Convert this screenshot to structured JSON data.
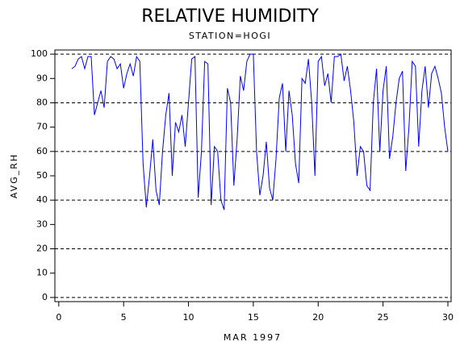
{
  "chart_data": {
    "type": "line",
    "title": "RELATIVE HUMIDITY",
    "subtitle": "STATION=HOGI",
    "x_label": "MAR 1997",
    "y_label": "AVG_RH",
    "x": [
      1,
      1.25,
      1.5,
      1.75,
      2,
      2.25,
      2.5,
      2.75,
      3,
      3.25,
      3.5,
      3.75,
      4,
      4.25,
      4.5,
      4.75,
      5,
      5.25,
      5.5,
      5.75,
      6,
      6.25,
      6.5,
      6.75,
      7,
      7.25,
      7.5,
      7.75,
      8,
      8.25,
      8.5,
      8.75,
      9,
      9.25,
      9.5,
      9.75,
      10,
      10.25,
      10.5,
      10.75,
      11,
      11.25,
      11.5,
      11.75,
      12,
      12.25,
      12.5,
      12.75,
      13,
      13.25,
      13.5,
      13.75,
      14,
      14.25,
      14.5,
      14.75,
      15,
      15.25,
      15.5,
      15.75,
      16,
      16.25,
      16.5,
      16.75,
      17,
      17.25,
      17.5,
      17.75,
      18,
      18.25,
      18.5,
      18.75,
      19,
      19.25,
      19.5,
      19.75,
      20,
      20.25,
      20.5,
      20.75,
      21,
      21.25,
      21.5,
      21.75,
      22,
      22.25,
      22.5,
      22.75,
      23,
      23.25,
      23.5,
      23.75,
      24,
      24.25,
      24.5,
      24.75,
      25,
      25.25,
      25.5,
      25.75,
      26,
      26.25,
      26.5,
      26.75,
      27,
      27.25,
      27.5,
      27.75,
      28,
      28.25,
      28.5,
      28.75,
      29,
      29.25,
      29.5,
      29.75,
      30
    ],
    "series": [
      {
        "color": "#0000ff",
        "values": [
          94,
          95,
          98,
          99,
          94,
          99,
          99,
          75,
          80,
          85,
          78,
          97,
          99,
          98,
          94,
          96,
          86,
          92,
          96,
          91,
          99,
          97,
          55,
          37,
          50,
          65,
          44,
          38,
          60,
          75,
          84,
          50,
          72,
          68,
          75,
          62,
          80,
          98,
          99,
          41,
          60,
          97,
          96,
          38,
          62,
          60,
          40,
          36,
          86,
          80,
          46,
          65,
          91,
          85,
          97,
          100,
          100,
          60,
          42,
          50,
          64,
          45,
          40,
          57,
          82,
          88,
          60,
          85,
          75,
          55,
          47,
          90,
          88,
          98,
          80,
          50,
          97,
          99,
          87,
          92,
          80,
          99,
          99,
          100,
          89,
          95,
          85,
          72,
          50,
          62,
          60,
          46,
          44,
          80,
          94,
          60,
          85,
          95,
          57,
          66,
          80,
          90,
          93,
          52,
          70,
          97,
          95,
          62,
          85,
          95,
          78,
          92,
          95,
          90,
          84,
          70,
          60
        ]
      }
    ],
    "xlim": [
      -0.3,
      30.25
    ],
    "xticks": [
      0,
      5,
      10,
      15,
      20,
      25,
      30
    ],
    "ylim": [
      -1.7,
      101.7
    ],
    "yticks": [
      0,
      10,
      20,
      30,
      40,
      50,
      60,
      70,
      80,
      90,
      100
    ],
    "grid_yticks": [
      0,
      20,
      40,
      60,
      80,
      100
    ],
    "grid": true
  }
}
